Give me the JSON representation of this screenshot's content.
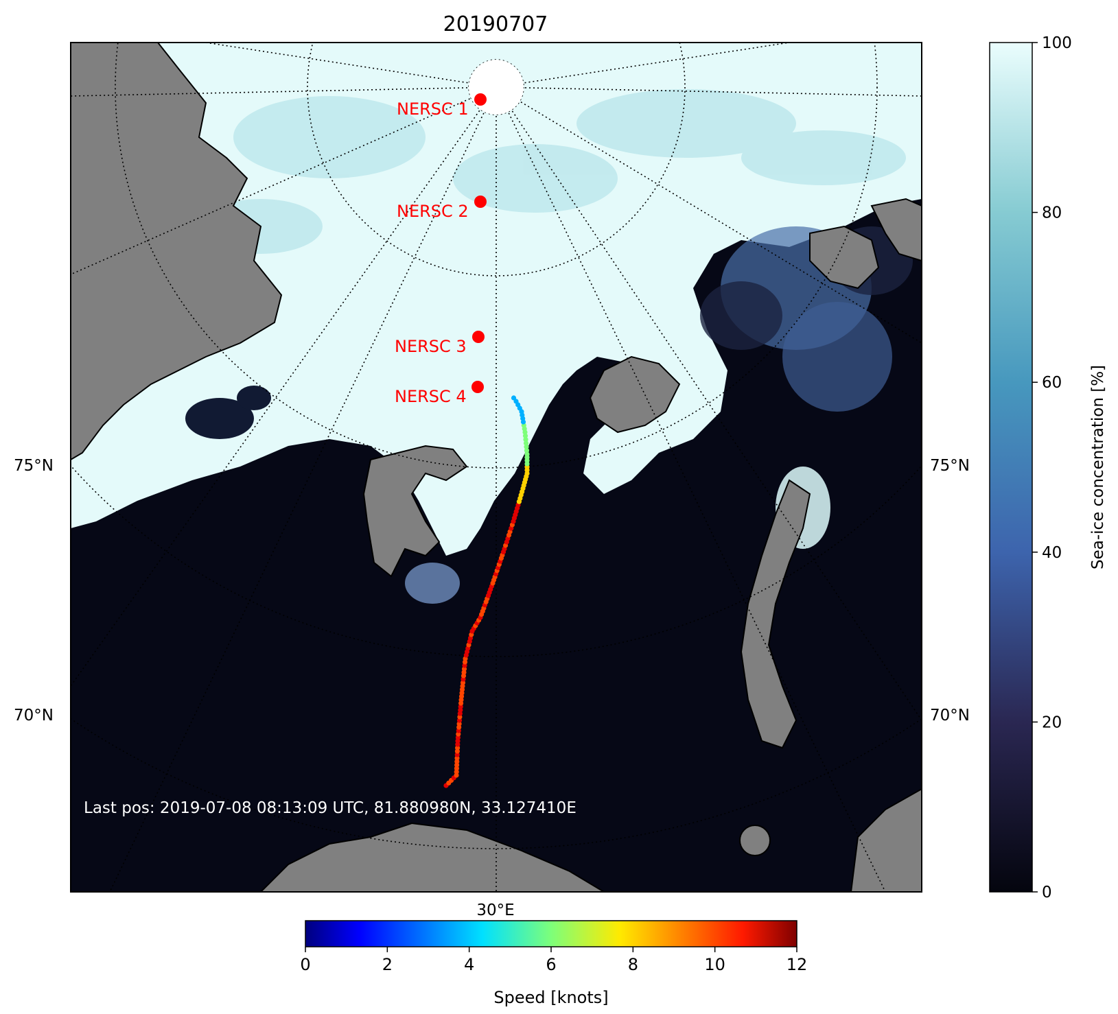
{
  "map": {
    "title": "20190707",
    "lat_labels": [
      "75°N",
      "70°N"
    ],
    "lon_label": "30°E",
    "last_pos": "Last pos: 2019-07-08 08:13:09 UTC, 81.880980N, 33.127410E",
    "stations": [
      {
        "label": "NERSC 1",
        "color": "#ff0000"
      },
      {
        "label": "NERSC 2",
        "color": "#ff0000"
      },
      {
        "label": "NERSC 3",
        "color": "#ff0000"
      },
      {
        "label": "NERSC 4",
        "color": "#ff0000"
      }
    ],
    "colors": {
      "ocean": "#060816",
      "ice": "#e4fafa",
      "land": "#808080",
      "coast": "#000000",
      "graticule": "#000000",
      "station_text": "#ff0000",
      "last_pos_text": "#ffffff"
    }
  },
  "ice_colorbar": {
    "label": "Sea-ice concentration [%]",
    "ticks": [
      "0",
      "20",
      "40",
      "60",
      "80",
      "100"
    ],
    "colormap": "ice",
    "range": [
      0,
      100
    ]
  },
  "speed_colorbar": {
    "label": "Speed [knots]",
    "ticks": [
      "0",
      "2",
      "4",
      "6",
      "8",
      "10",
      "12"
    ],
    "colormap": "jet",
    "range": [
      0,
      12
    ]
  }
}
